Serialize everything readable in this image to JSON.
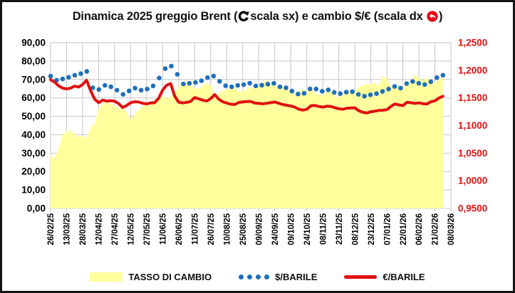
{
  "title": {
    "prefix": "Dinamica 2025 greggio Brent (",
    "mid": "scala sx) e cambio $/€ (scala dx ",
    "suffix": ")"
  },
  "icons": {
    "left_scale_arrow": "counterclockwise-circle-arrow-black",
    "right_scale_arrow": "back-arrow-red-disc"
  },
  "chart_data": {
    "type": "line",
    "title": "Dinamica 2025 greggio Brent (scala sx) e cambio $/€ (scala dx)",
    "grid": true,
    "x_intervals": 25,
    "x_tick_labels": [
      "26/02/25",
      "13/03/25",
      "28/03/25",
      "12/04/25",
      "27/04/25",
      "12/05/25",
      "27/05/25",
      "11/06/25",
      "26/06/25",
      "11/07/25",
      "26/07/25",
      "10/08/25",
      "25/08/25",
      "09/09/25",
      "24/09/25",
      "09/10/25",
      "24/10/25",
      "08/11/25",
      "23/11/25",
      "08/12/25",
      "23/12/25",
      "07/01/26",
      "22/01/26",
      "06/02/26",
      "21/02/26",
      "08/03/26"
    ],
    "left_axis": {
      "min": 0,
      "max": 90,
      "step": 10,
      "tick_labels": [
        "90,00",
        "80,00",
        "70,00",
        "60,00",
        "50,00",
        "40,00",
        "30,00",
        "20,00",
        "10,00",
        "0,00"
      ]
    },
    "right_axis": {
      "min": 0.95,
      "max": 1.25,
      "step": 0.05,
      "tick_labels": [
        "1,2500",
        "1,2000",
        "1,1500",
        "1,1000",
        "1,0500",
        "1,0000",
        "0,9500"
      ]
    },
    "colors": {
      "area": "#ffff9e",
      "dots": "#1e6fbc",
      "line": "#e11010",
      "grid": "#c6c6c6",
      "axis_right_text": "#e11010"
    },
    "series": [
      {
        "name": "TASSO DI CAMBIO",
        "kind": "area",
        "axis": "right",
        "color": "#ffff9e",
        "t_start": 0,
        "t_end": 24.5,
        "values": [
          1.046,
          1.04,
          1.058,
          1.083,
          1.088,
          1.092,
          1.085,
          1.079,
          1.082,
          1.077,
          1.097,
          1.102,
          1.13,
          1.139,
          1.148,
          1.139,
          1.136,
          1.13,
          1.133,
          1.124,
          1.112,
          1.119,
          1.128,
          1.134,
          1.139,
          1.144,
          1.14,
          1.149,
          1.153,
          1.149,
          1.152,
          1.159,
          1.171,
          1.176,
          1.18,
          1.172,
          1.168,
          1.166,
          1.173,
          1.177,
          1.173,
          1.153,
          1.159,
          1.163,
          1.165,
          1.168,
          1.171,
          1.161,
          1.162,
          1.165,
          1.17,
          1.166,
          1.173,
          1.177,
          1.182,
          1.176,
          1.174,
          1.166,
          1.172,
          1.168,
          1.161,
          1.157,
          1.162,
          1.165,
          1.161,
          1.166,
          1.159,
          1.156,
          1.155,
          1.16,
          1.163,
          1.152,
          1.151,
          1.158,
          1.161,
          1.164,
          1.163,
          1.169,
          1.173,
          1.176,
          1.174,
          1.179,
          1.171,
          1.191,
          1.184,
          1.172,
          1.167,
          1.173,
          1.169,
          1.177,
          1.181,
          1.193,
          1.185,
          1.181,
          1.188,
          1.179,
          1.177,
          1.184,
          1.187
        ]
      },
      {
        "name": "$/BARILE",
        "kind": "scatter",
        "axis": "left",
        "color": "#1e6fbc",
        "t_start": 0,
        "t_end": 24.5,
        "values": [
          71.8,
          69.6,
          70.3,
          71.2,
          72.3,
          73.2,
          74.4,
          65.5,
          64.6,
          66.8,
          66.0,
          64.2,
          61.9,
          63.8,
          65.3,
          64.2,
          64.8,
          66.5,
          70.8,
          75.9,
          77.3,
          72.8,
          67.6,
          67.9,
          68.4,
          69.3,
          71.0,
          71.9,
          69.0,
          66.6,
          66.0,
          66.8,
          67.2,
          68.0,
          66.5,
          66.9,
          67.5,
          67.9,
          66.0,
          65.5,
          63.7,
          62.1,
          62.5,
          64.9,
          64.8,
          63.6,
          64.4,
          63.0,
          62.3,
          63.1,
          63.4,
          61.9,
          60.9,
          61.7,
          62.3,
          63.5,
          64.8,
          66.2,
          65.3,
          67.8,
          68.9,
          68.0,
          67.3,
          68.8,
          71.0,
          72.3
        ]
      },
      {
        "name": "€/BARILE",
        "kind": "line",
        "axis": "left",
        "color": "#e11010",
        "t_start": 0,
        "t_end": 24.5,
        "values": [
          69.9,
          68.6,
          66.6,
          65.3,
          64.9,
          65.3,
          66.4,
          65.9,
          67.3,
          69.6,
          63.9,
          59.4,
          57.4,
          58.8,
          58.3,
          58.5,
          58.2,
          56.9,
          54.8,
          55.9,
          57.4,
          57.9,
          57.8,
          57.1,
          56.7,
          57.3,
          57.4,
          59.8,
          64.3,
          66.9,
          67.8,
          61.0,
          57.7,
          57.3,
          57.6,
          58.1,
          60.2,
          59.5,
          58.8,
          58.3,
          59.6,
          61.8,
          59.3,
          57.9,
          57.2,
          56.6,
          56.4,
          57.5,
          57.8,
          58.0,
          58.1,
          57.2,
          57.0,
          56.8,
          57.1,
          57.4,
          57.8,
          57.1,
          56.4,
          56.0,
          55.6,
          55.0,
          53.9,
          53.4,
          53.8,
          55.7,
          55.9,
          55.4,
          55.0,
          55.5,
          55.4,
          54.7,
          54.1,
          53.8,
          54.4,
          54.5,
          54.6,
          53.0,
          52.2,
          51.8,
          52.5,
          52.8,
          53.2,
          53.3,
          53.6,
          55.3,
          56.7,
          56.2,
          55.8,
          57.6,
          57.4,
          57.0,
          57.3,
          56.9,
          56.7,
          57.9,
          58.4,
          59.9,
          60.9
        ]
      }
    ]
  },
  "legend": {
    "area_label": "TASSO DI CAMBIO",
    "dots_label": "$/BARILE",
    "line_label": "€/BARILE"
  }
}
